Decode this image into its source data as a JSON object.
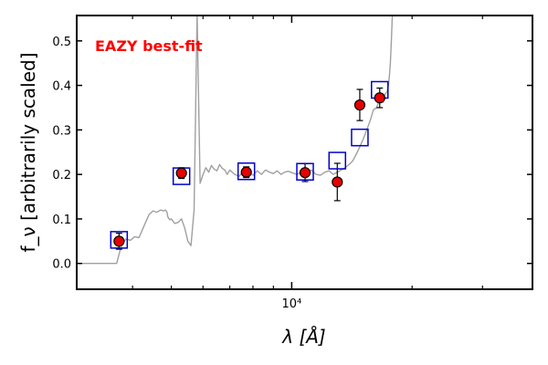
{
  "chart_data": {
    "type": "scatter",
    "annotation": "EAZY best-fit",
    "annotation_color": "#ff0000",
    "xlabel": "λ [Å]",
    "ylabel": "f_ν [arbitrarily scaled]",
    "xscale": "log",
    "xlim": [
      2900,
      40000
    ],
    "ylim": [
      -0.058,
      0.557
    ],
    "yticks": [
      0.0,
      0.1,
      0.2,
      0.3,
      0.4,
      0.5
    ],
    "ytick_labels": [
      "0.0",
      "0.1",
      "0.2",
      "0.3",
      "0.4",
      "0.5"
    ],
    "xtick_major": [
      10000
    ],
    "xtick_major_labels": [
      "10⁴"
    ],
    "xtick_minor": [
      4000,
      5000,
      6000,
      7000,
      8000,
      9000,
      20000,
      30000
    ],
    "grid": false,
    "observed": {
      "marker": "filled circle",
      "color": "#e60000",
      "edge_color": "#000000",
      "points": [
        {
          "x": 3700,
          "y": 0.05,
          "yerr": 0.018
        },
        {
          "x": 5300,
          "y": 0.203,
          "yerr": 0.012
        },
        {
          "x": 7700,
          "y": 0.205,
          "yerr": 0.012
        },
        {
          "x": 10800,
          "y": 0.204,
          "yerr": 0.02
        },
        {
          "x": 13000,
          "y": 0.183,
          "yerr": 0.042
        },
        {
          "x": 14800,
          "y": 0.356,
          "yerr": 0.035
        },
        {
          "x": 16600,
          "y": 0.372,
          "yerr": 0.022
        }
      ]
    },
    "model_photometry": {
      "marker": "open square",
      "color": "#0000cc",
      "points": [
        {
          "x": 3700,
          "y": 0.053
        },
        {
          "x": 5300,
          "y": 0.196
        },
        {
          "x": 7700,
          "y": 0.207
        },
        {
          "x": 10800,
          "y": 0.206
        },
        {
          "x": 13000,
          "y": 0.231
        },
        {
          "x": 14800,
          "y": 0.283
        },
        {
          "x": 16600,
          "y": 0.39
        }
      ]
    },
    "model_spectrum": {
      "color": "#a0a0a0",
      "x": [
        2900,
        3200,
        3450,
        3550,
        3650,
        3750,
        3850,
        3950,
        4050,
        4150,
        4300,
        4400,
        4500,
        4600,
        4700,
        4780,
        4840,
        4880,
        4900,
        4920,
        4960,
        5000,
        5100,
        5200,
        5300,
        5400,
        5500,
        5600,
        5700,
        5800,
        5900,
        6000,
        6100,
        6200,
        6300,
        6400,
        6500,
        6600,
        6700,
        6800,
        6900,
        7000,
        7200,
        7400,
        7600,
        7800,
        8000,
        8200,
        8400,
        8600,
        8800,
        9000,
        9200,
        9400,
        9600,
        9800,
        10000,
        10300,
        10600,
        10900,
        11200,
        11500,
        11800,
        12100,
        12400,
        12700,
        13000,
        13300,
        13600,
        13900,
        14200,
        14500,
        14800,
        15100,
        15400,
        15700,
        16000,
        16300,
        16600,
        16900,
        17100,
        17300,
        17450,
        17550,
        17650,
        17750,
        17850,
        18000
      ],
      "y": [
        0.0,
        0.0,
        0.0,
        0.0,
        0.0,
        0.04,
        0.055,
        0.052,
        0.06,
        0.058,
        0.09,
        0.11,
        0.118,
        0.115,
        0.12,
        0.118,
        0.12,
        0.114,
        0.105,
        0.102,
        0.098,
        0.1,
        0.09,
        0.092,
        0.1,
        0.08,
        0.05,
        0.04,
        0.12,
        0.56,
        0.18,
        0.2,
        0.215,
        0.205,
        0.22,
        0.212,
        0.208,
        0.222,
        0.214,
        0.21,
        0.2,
        0.21,
        0.2,
        0.196,
        0.21,
        0.205,
        0.198,
        0.208,
        0.2,
        0.21,
        0.205,
        0.202,
        0.208,
        0.2,
        0.205,
        0.207,
        0.204,
        0.2,
        0.206,
        0.203,
        0.21,
        0.2,
        0.198,
        0.205,
        0.208,
        0.2,
        0.205,
        0.21,
        0.215,
        0.222,
        0.23,
        0.245,
        0.262,
        0.28,
        0.3,
        0.32,
        0.345,
        0.35,
        0.37,
        0.362,
        0.38,
        0.385,
        0.4,
        0.42,
        0.45,
        0.5,
        0.56,
        0.56
      ]
    }
  }
}
